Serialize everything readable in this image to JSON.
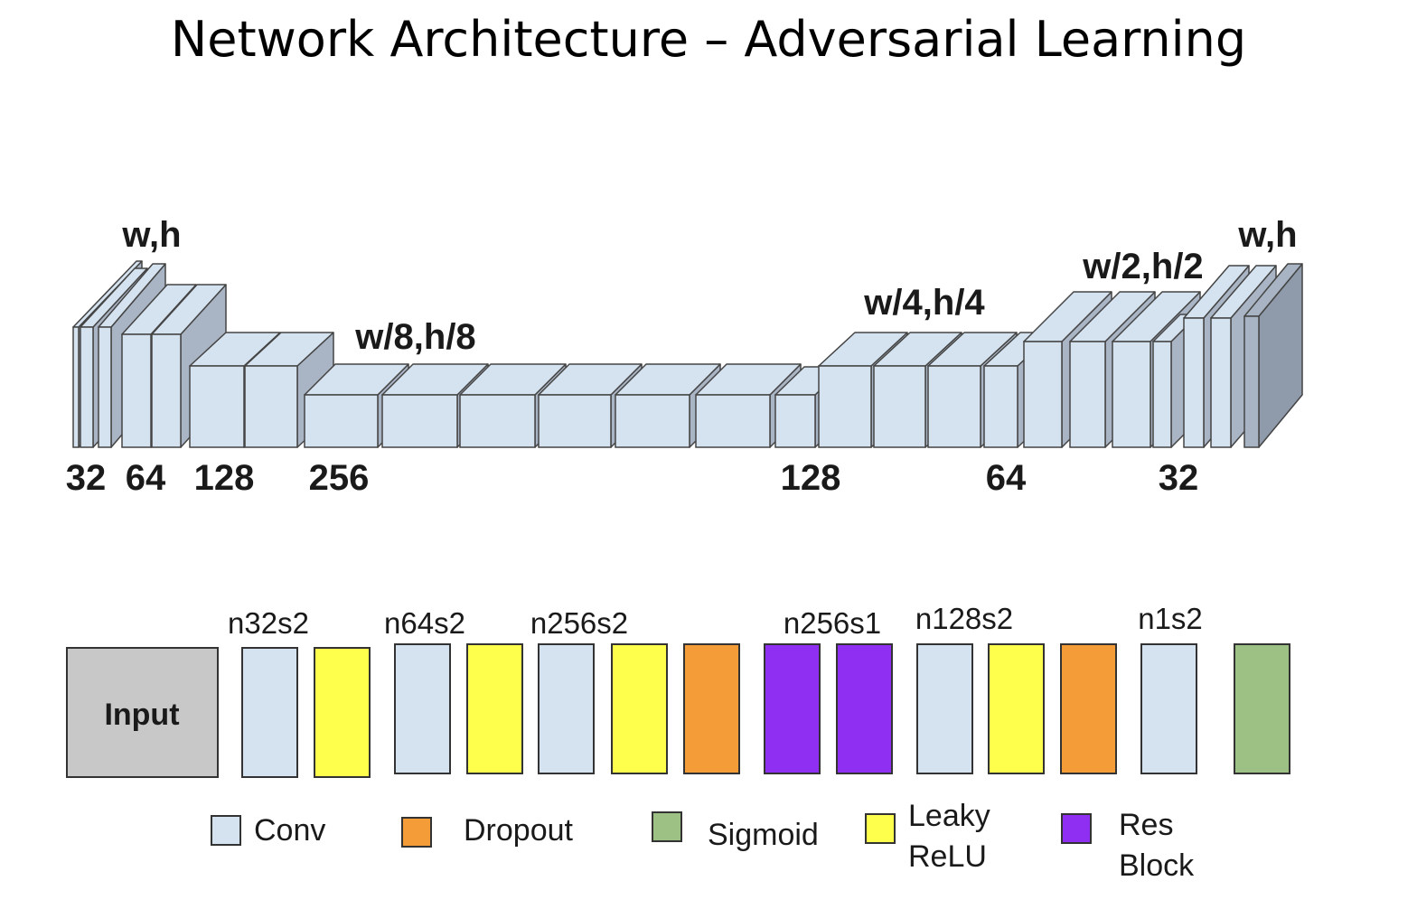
{
  "title": "Network Architecture – Adversarial Learning",
  "colors": {
    "conv": "#d5e2ef",
    "dropout": "#f39c38",
    "sigmoid": "#9dc184",
    "leaky_relu": "#fefe4c",
    "res_block": "#8e2ff1",
    "input": "#c8c8c8",
    "last_block": "#a8b4c3"
  },
  "architecture": {
    "resolution_labels": [
      "w,h",
      "w/8,h/8",
      "w/4,h/4",
      "w/2,h/2",
      "w,h"
    ],
    "channel_labels": [
      "32",
      "64",
      "128",
      "256",
      "128",
      "64",
      "32"
    ]
  },
  "layers": {
    "input_label": "Input",
    "labels": [
      "n32s2",
      "n64s2",
      "n256s2",
      "n256s1",
      "n128s2",
      "n1s2"
    ]
  },
  "legend": {
    "conv": "Conv",
    "dropout": "Dropout",
    "sigmoid": "Sigmoid",
    "leaky_relu_1": "Leaky",
    "leaky_relu_2": "ReLU",
    "res_block_1": "Res",
    "res_block_2": "Block"
  }
}
